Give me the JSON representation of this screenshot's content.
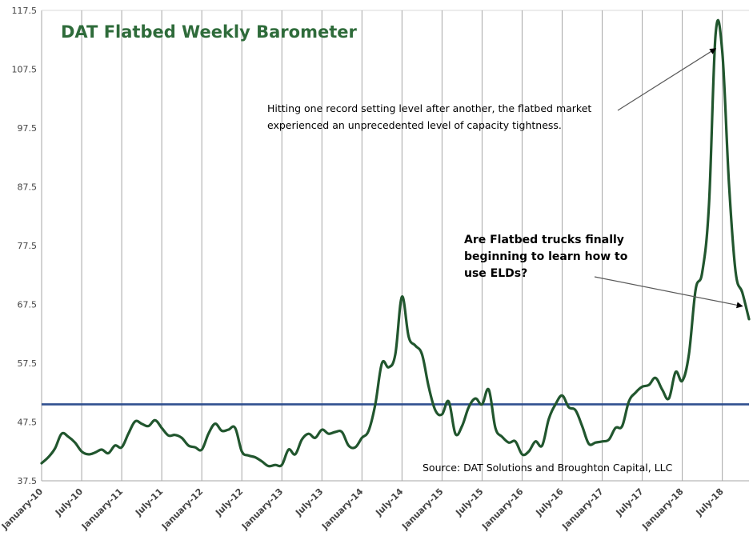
{
  "chart_data": {
    "type": "line",
    "title": "DAT Flatbed Weekly Barometer",
    "xlabel": "",
    "ylabel": "",
    "ylim": [
      37.5,
      117.5
    ],
    "yticks": [
      "37.5",
      "47.5",
      "57.5",
      "67.5",
      "77.5",
      "87.5",
      "97.5",
      "107.5",
      "117.5"
    ],
    "xlim": [
      "2010-01",
      "2018-11"
    ],
    "xticks": [
      {
        "label": "January-10",
        "date": "2010-01"
      },
      {
        "label": "July-10",
        "date": "2010-07"
      },
      {
        "label": "January-11",
        "date": "2011-01"
      },
      {
        "label": "July-11",
        "date": "2011-07"
      },
      {
        "label": "January-12",
        "date": "2012-01"
      },
      {
        "label": "July-12",
        "date": "2012-07"
      },
      {
        "label": "January-13",
        "date": "2013-01"
      },
      {
        "label": "July-13",
        "date": "2013-07"
      },
      {
        "label": "January-14",
        "date": "2014-01"
      },
      {
        "label": "July-14",
        "date": "2014-07"
      },
      {
        "label": "January-15",
        "date": "2015-01"
      },
      {
        "label": "July-15",
        "date": "2015-07"
      },
      {
        "label": "January-16",
        "date": "2016-01"
      },
      {
        "label": "July-16",
        "date": "2016-07"
      },
      {
        "label": "January-17",
        "date": "2017-01"
      },
      {
        "label": "July-17",
        "date": "2017-07"
      },
      {
        "label": "January-18",
        "date": "2018-01"
      },
      {
        "label": "July-18",
        "date": "2018-07"
      }
    ],
    "reference_line": 50.5,
    "grid": "vertical",
    "colors": {
      "series": "#21562e",
      "reference": "#2f4f8f",
      "grid": "#a6a6a6",
      "title": "#2e6b3a"
    },
    "series": [
      {
        "points": [
          [
            "2010-01",
            40.5
          ],
          [
            "2010-02",
            41.5
          ],
          [
            "2010-03",
            43.0
          ],
          [
            "2010-04",
            45.5
          ],
          [
            "2010-05",
            45.0
          ],
          [
            "2010-06",
            44.0
          ],
          [
            "2010-07",
            42.5
          ],
          [
            "2010-08",
            42.0
          ],
          [
            "2010-09",
            42.3
          ],
          [
            "2010-10",
            42.8
          ],
          [
            "2010-11",
            42.2
          ],
          [
            "2010-12",
            43.5
          ],
          [
            "2011-01",
            43.2
          ],
          [
            "2011-02",
            45.5
          ],
          [
            "2011-03",
            47.6
          ],
          [
            "2011-04",
            47.2
          ],
          [
            "2011-05",
            46.8
          ],
          [
            "2011-06",
            47.8
          ],
          [
            "2011-07",
            46.5
          ],
          [
            "2011-08",
            45.2
          ],
          [
            "2011-09",
            45.3
          ],
          [
            "2011-10",
            44.8
          ],
          [
            "2011-11",
            43.5
          ],
          [
            "2011-12",
            43.2
          ],
          [
            "2012-01",
            42.8
          ],
          [
            "2012-02",
            45.5
          ],
          [
            "2012-03",
            47.2
          ],
          [
            "2012-04",
            46.0
          ],
          [
            "2012-05",
            46.2
          ],
          [
            "2012-06",
            46.5
          ],
          [
            "2012-07",
            42.5
          ],
          [
            "2012-08",
            41.8
          ],
          [
            "2012-09",
            41.5
          ],
          [
            "2012-10",
            40.8
          ],
          [
            "2012-11",
            40.0
          ],
          [
            "2012-12",
            40.2
          ],
          [
            "2013-01",
            40.2
          ],
          [
            "2013-02",
            42.8
          ],
          [
            "2013-03",
            42.0
          ],
          [
            "2013-04",
            44.5
          ],
          [
            "2013-05",
            45.5
          ],
          [
            "2013-06",
            44.8
          ],
          [
            "2013-07",
            46.2
          ],
          [
            "2013-08",
            45.5
          ],
          [
            "2013-09",
            45.8
          ],
          [
            "2013-10",
            45.8
          ],
          [
            "2013-11",
            43.5
          ],
          [
            "2013-12",
            43.2
          ],
          [
            "2014-01",
            44.8
          ],
          [
            "2014-02",
            46.0
          ],
          [
            "2014-03",
            50.5
          ],
          [
            "2014-04",
            57.5
          ],
          [
            "2014-05",
            56.8
          ],
          [
            "2014-06",
            59.0
          ],
          [
            "2014-07",
            68.8
          ],
          [
            "2014-08",
            62.0
          ],
          [
            "2014-09",
            60.5
          ],
          [
            "2014-10",
            59.0
          ],
          [
            "2014-11",
            53.5
          ],
          [
            "2014-12",
            49.5
          ],
          [
            "2015-01",
            48.8
          ],
          [
            "2015-02",
            51.0
          ],
          [
            "2015-03",
            45.5
          ],
          [
            "2015-04",
            46.8
          ],
          [
            "2015-05",
            50.0
          ],
          [
            "2015-06",
            51.5
          ],
          [
            "2015-07",
            50.5
          ],
          [
            "2015-08",
            53.0
          ],
          [
            "2015-09",
            46.5
          ],
          [
            "2015-10",
            45.0
          ],
          [
            "2015-11",
            44.0
          ],
          [
            "2015-12",
            44.2
          ],
          [
            "2016-01",
            42.0
          ],
          [
            "2016-02",
            42.5
          ],
          [
            "2016-03",
            44.2
          ],
          [
            "2016-04",
            43.5
          ],
          [
            "2016-05",
            48.0
          ],
          [
            "2016-06",
            50.5
          ],
          [
            "2016-07",
            52.0
          ],
          [
            "2016-08",
            50.0
          ],
          [
            "2016-09",
            49.5
          ],
          [
            "2016-10",
            46.8
          ],
          [
            "2016-11",
            43.8
          ],
          [
            "2016-12",
            44.0
          ],
          [
            "2017-01",
            44.2
          ],
          [
            "2017-02",
            44.5
          ],
          [
            "2017-03",
            46.5
          ],
          [
            "2017-04",
            46.8
          ],
          [
            "2017-05",
            51.0
          ],
          [
            "2017-06",
            52.5
          ],
          [
            "2017-07",
            53.5
          ],
          [
            "2017-08",
            53.8
          ],
          [
            "2017-09",
            55.0
          ],
          [
            "2017-10",
            53.0
          ],
          [
            "2017-11",
            51.5
          ],
          [
            "2017-12",
            56.0
          ],
          [
            "2018-01",
            54.5
          ],
          [
            "2018-02",
            59.0
          ],
          [
            "2018-03",
            70.0
          ],
          [
            "2018-04",
            73.0
          ],
          [
            "2018-05",
            84.5
          ],
          [
            "2018-06",
            113.5
          ],
          [
            "2018-07",
            110.5
          ],
          [
            "2018-08",
            88.0
          ],
          [
            "2018-09",
            73.0
          ],
          [
            "2018-10",
            69.5
          ],
          [
            "2018-11",
            65.0
          ]
        ]
      }
    ],
    "annotations": [
      {
        "text": "Hitting one record setting level after another, the flatbed market experienced an unprecedented level of capacity tightness.",
        "style": "normal",
        "arrow_to": [
          "2018-06",
          111.0
        ]
      },
      {
        "text": "Are Flatbed trucks finally beginning to learn how to use ELDs?",
        "style": "bold",
        "arrow_to": [
          "2018-10",
          67.2
        ]
      }
    ],
    "source": "Source: DAT Solutions and Broughton Capital, LLC"
  }
}
